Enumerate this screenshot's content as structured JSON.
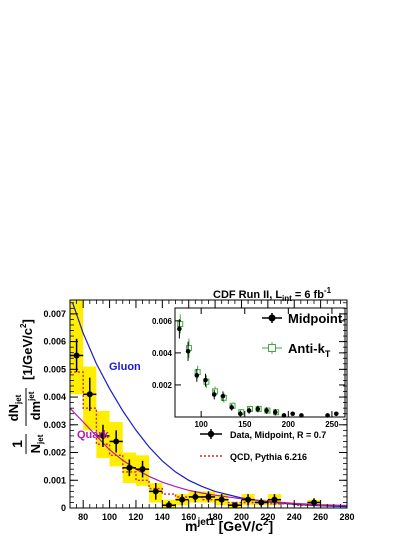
{
  "chart_data": [
    {
      "type": "scatter",
      "title": "CDF Run II, L",
      "title_sub": "int",
      "title_suffix": " = 6 fb",
      "title_sup": "-1",
      "ylabel_main": "1",
      "ylabel_denom": "N",
      "ylabel_denom_sub": "jet",
      "ylabel_num": "dN",
      "ylabel_num_sub": "jet",
      "ylabel_dm": "dm",
      "ylabel_dm_sup": "jet",
      "ylabel_units": "[1/GeV/c",
      "ylabel_units_sup": "2",
      "ylabel_units_end": "]",
      "xlabel": "m",
      "xlabel_sup": "jet1",
      "xlabel_units": " [GeV/c",
      "xlabel_units_sup": "2",
      "xlabel_units_end": "]",
      "xlim": [
        70,
        280
      ],
      "ylim": [
        0,
        0.0075
      ],
      "x_ticks": [
        80,
        100,
        120,
        140,
        160,
        180,
        200,
        220,
        240,
        260,
        280
      ],
      "y_ticks": [
        0,
        0.001,
        0.002,
        0.003,
        0.004,
        0.005,
        0.006,
        0.007
      ],
      "x_tick_labels": [
        "80",
        "100",
        "120",
        "140",
        "160",
        "180",
        "200",
        "220",
        "240",
        "260",
        "280"
      ],
      "y_tick_labels": [
        "0",
        "0.001",
        "0.002",
        "0.003",
        "0.004",
        "0.005",
        "0.006",
        "0.007"
      ],
      "curve_labels": {
        "gluon": "Gluon",
        "quark": "Quark"
      },
      "colors": {
        "gluon": "#1a1acc",
        "quark": "#b21ab2",
        "band": "#ffee00",
        "qcd": "#e02020",
        "data": "#000000"
      },
      "data_points": [
        {
          "x": 75,
          "y": 0.0055,
          "yerr": 0.0006
        },
        {
          "x": 85,
          "y": 0.0041,
          "yerr": 0.0006
        },
        {
          "x": 95,
          "y": 0.0026,
          "yerr": 0.0004
        },
        {
          "x": 105,
          "y": 0.0024,
          "yerr": 0.0004
        },
        {
          "x": 115,
          "y": 0.00145,
          "yerr": 0.0003
        },
        {
          "x": 125,
          "y": 0.0014,
          "yerr": 0.0003
        },
        {
          "x": 135,
          "y": 0.0006,
          "yerr": 0.0003
        },
        {
          "x": 145,
          "y": 0.0001,
          "yerr": 0.00015
        },
        {
          "x": 155,
          "y": 0.0003,
          "yerr": 0.0002
        },
        {
          "x": 165,
          "y": 0.0004,
          "yerr": 0.0002
        },
        {
          "x": 175,
          "y": 0.0004,
          "yerr": 0.0002
        },
        {
          "x": 185,
          "y": 0.0003,
          "yerr": 0.0002
        },
        {
          "x": 195,
          "y": 0.0001,
          "yerr": 0.0001
        },
        {
          "x": 205,
          "y": 0.0003,
          "yerr": 0.0002
        },
        {
          "x": 215,
          "y": 0.0002,
          "yerr": 0.00015
        },
        {
          "x": 225,
          "y": 0.0003,
          "yerr": 0.0002
        },
        {
          "x": 255,
          "y": 0.0002,
          "yerr": 0.00015
        }
      ],
      "band": [
        {
          "x0": 70,
          "x1": 80,
          "y0": 0.0041,
          "y1": 0.0075
        },
        {
          "x0": 80,
          "x1": 90,
          "y0": 0.0028,
          "y1": 0.0051
        },
        {
          "x0": 90,
          "x1": 100,
          "y0": 0.0018,
          "y1": 0.0035
        },
        {
          "x0": 100,
          "x1": 110,
          "y0": 0.0015,
          "y1": 0.0031
        },
        {
          "x0": 110,
          "x1": 120,
          "y0": 0.0009,
          "y1": 0.002
        },
        {
          "x0": 120,
          "x1": 130,
          "y0": 0.0008,
          "y1": 0.0019
        },
        {
          "x0": 130,
          "x1": 140,
          "y0": 0.0002,
          "y1": 0.0009
        },
        {
          "x0": 140,
          "x1": 150,
          "y0": 0.0,
          "y1": 0.0003
        },
        {
          "x0": 150,
          "x1": 160,
          "y0": 0.0001,
          "y1": 0.0005
        },
        {
          "x0": 160,
          "x1": 170,
          "y0": 0.0002,
          "y1": 0.0006
        },
        {
          "x0": 170,
          "x1": 180,
          "y0": 0.0002,
          "y1": 0.0006
        },
        {
          "x0": 180,
          "x1": 190,
          "y0": 0.0001,
          "y1": 0.0005
        },
        {
          "x0": 190,
          "x1": 200,
          "y0": 0.0,
          "y1": 0.0002
        },
        {
          "x0": 200,
          "x1": 210,
          "y0": 0.0001,
          "y1": 0.0005
        },
        {
          "x0": 210,
          "x1": 220,
          "y0": 0.0001,
          "y1": 0.0003
        },
        {
          "x0": 220,
          "x1": 230,
          "y0": 0.0001,
          "y1": 0.0005
        },
        {
          "x0": 250,
          "x1": 260,
          "y0": 0.0001,
          "y1": 0.0003
        }
      ],
      "qcd_steps": [
        {
          "x0": 70,
          "x1": 80,
          "y": 0.0049
        },
        {
          "x0": 80,
          "x1": 90,
          "y": 0.0036
        },
        {
          "x0": 90,
          "x1": 100,
          "y": 0.0023
        },
        {
          "x0": 100,
          "x1": 110,
          "y": 0.0019
        },
        {
          "x0": 110,
          "x1": 120,
          "y": 0.0013
        },
        {
          "x0": 120,
          "x1": 130,
          "y": 0.001
        },
        {
          "x0": 130,
          "x1": 140,
          "y": 0.0007
        },
        {
          "x0": 140,
          "x1": 150,
          "y": 0.0005
        },
        {
          "x0": 150,
          "x1": 160,
          "y": 0.0004
        },
        {
          "x0": 160,
          "x1": 170,
          "y": 0.0004
        },
        {
          "x0": 170,
          "x1": 180,
          "y": 0.0003
        },
        {
          "x0": 180,
          "x1": 190,
          "y": 0.0003
        },
        {
          "x0": 190,
          "x1": 200,
          "y": 0.0002
        },
        {
          "x0": 200,
          "x1": 210,
          "y": 0.0002
        },
        {
          "x0": 210,
          "x1": 220,
          "y": 0.0002
        },
        {
          "x0": 220,
          "x1": 230,
          "y": 0.00015
        },
        {
          "x0": 230,
          "x1": 240,
          "y": 0.00015
        },
        {
          "x0": 240,
          "x1": 250,
          "y": 0.0001
        },
        {
          "x0": 250,
          "x1": 260,
          "y": 0.0001
        },
        {
          "x0": 260,
          "x1": 270,
          "y": 0.0001
        }
      ],
      "gluon_curve": [
        {
          "x": 72,
          "y": 0.0074
        },
        {
          "x": 80,
          "y": 0.0063
        },
        {
          "x": 90,
          "y": 0.0052
        },
        {
          "x": 100,
          "y": 0.0043
        },
        {
          "x": 110,
          "y": 0.0035
        },
        {
          "x": 120,
          "y": 0.0028
        },
        {
          "x": 130,
          "y": 0.0022
        },
        {
          "x": 140,
          "y": 0.0017
        },
        {
          "x": 150,
          "y": 0.0013
        },
        {
          "x": 160,
          "y": 0.001
        },
        {
          "x": 170,
          "y": 0.00078
        },
        {
          "x": 180,
          "y": 0.0006
        },
        {
          "x": 200,
          "y": 0.00036
        },
        {
          "x": 220,
          "y": 0.00022
        },
        {
          "x": 240,
          "y": 0.00013
        },
        {
          "x": 260,
          "y": 8e-05
        },
        {
          "x": 280,
          "y": 5e-05
        }
      ],
      "quark_curve": [
        {
          "x": 70,
          "y": 0.0036
        },
        {
          "x": 80,
          "y": 0.0031
        },
        {
          "x": 90,
          "y": 0.0026
        },
        {
          "x": 100,
          "y": 0.0021
        },
        {
          "x": 110,
          "y": 0.00172
        },
        {
          "x": 120,
          "y": 0.0014
        },
        {
          "x": 130,
          "y": 0.00114
        },
        {
          "x": 140,
          "y": 0.00093
        },
        {
          "x": 150,
          "y": 0.00077
        },
        {
          "x": 160,
          "y": 0.00064
        },
        {
          "x": 170,
          "y": 0.00054
        },
        {
          "x": 180,
          "y": 0.00046
        },
        {
          "x": 200,
          "y": 0.00033
        },
        {
          "x": 220,
          "y": 0.00024
        },
        {
          "x": 240,
          "y": 0.00017
        },
        {
          "x": 260,
          "y": 0.00012
        },
        {
          "x": 280,
          "y": 9e-05
        }
      ],
      "legend": {
        "placement": "bottom-right",
        "entries": [
          {
            "label": "Data, Midpoint, R = 0.7",
            "style": "marker"
          },
          {
            "label": "QCD, Pythia 6.216",
            "style": "dashed-red"
          }
        ]
      }
    },
    {
      "type": "scatter",
      "placement": "inset top-right",
      "xlim": [
        70,
        265
      ],
      "ylim": [
        0,
        0.0068
      ],
      "x_ticks": [
        100,
        150,
        200,
        250
      ],
      "x_tick_labels": [
        "100",
        "150",
        "200",
        "250"
      ],
      "y_ticks": [
        0.002,
        0.004,
        0.006
      ],
      "y_tick_labels": [
        "0.002",
        "0.004",
        "0.006"
      ],
      "legend": {
        "entries": [
          {
            "label": "Midpoint",
            "style": "black-marker"
          },
          {
            "label": "Anti-k",
            "label_sub": "T",
            "style": "green-open-square"
          }
        ]
      },
      "midpoint": [
        {
          "x": 75,
          "y": 0.0055,
          "yerr": 0.0006
        },
        {
          "x": 85,
          "y": 0.0041,
          "yerr": 0.0006
        },
        {
          "x": 95,
          "y": 0.0026,
          "yerr": 0.0004
        },
        {
          "x": 105,
          "y": 0.0023,
          "yerr": 0.0004
        },
        {
          "x": 115,
          "y": 0.0014,
          "yerr": 0.0003
        },
        {
          "x": 125,
          "y": 0.0013,
          "yerr": 0.0003
        },
        {
          "x": 135,
          "y": 0.0006,
          "yerr": 0.0002
        },
        {
          "x": 145,
          "y": 0.0002,
          "yerr": 0.0002
        },
        {
          "x": 155,
          "y": 0.0004,
          "yerr": 0.0002
        },
        {
          "x": 165,
          "y": 0.0005,
          "yerr": 0.0002
        },
        {
          "x": 175,
          "y": 0.0004,
          "yerr": 0.0002
        },
        {
          "x": 185,
          "y": 0.0003,
          "yerr": 0.0002
        },
        {
          "x": 195,
          "y": 0.0001,
          "yerr": 0.0001
        },
        {
          "x": 205,
          "y": 0.0002,
          "yerr": 0.0001
        },
        {
          "x": 215,
          "y": 0.0001,
          "yerr": 0.0001
        },
        {
          "x": 245,
          "y": 0.0001,
          "yerr": 0.0001
        },
        {
          "x": 255,
          "y": 0.0002,
          "yerr": 0.0001
        }
      ],
      "antikt": [
        {
          "x": 76,
          "y": 0.0058,
          "yerr": 0.0006
        },
        {
          "x": 86,
          "y": 0.0043,
          "yerr": 0.0006
        },
        {
          "x": 96,
          "y": 0.0028,
          "yerr": 0.0004
        },
        {
          "x": 106,
          "y": 0.0022,
          "yerr": 0.0004
        },
        {
          "x": 116,
          "y": 0.0016,
          "yerr": 0.0003
        },
        {
          "x": 126,
          "y": 0.0012,
          "yerr": 0.0003
        },
        {
          "x": 136,
          "y": 0.0007,
          "yerr": 0.0002
        },
        {
          "x": 146,
          "y": 0.0003,
          "yerr": 0.0002
        },
        {
          "x": 156,
          "y": 0.0005,
          "yerr": 0.0002
        },
        {
          "x": 166,
          "y": 0.0005,
          "yerr": 0.0002
        },
        {
          "x": 176,
          "y": 0.0004,
          "yerr": 0.0002
        },
        {
          "x": 186,
          "y": 0.0003,
          "yerr": 0.0002
        }
      ]
    }
  ]
}
